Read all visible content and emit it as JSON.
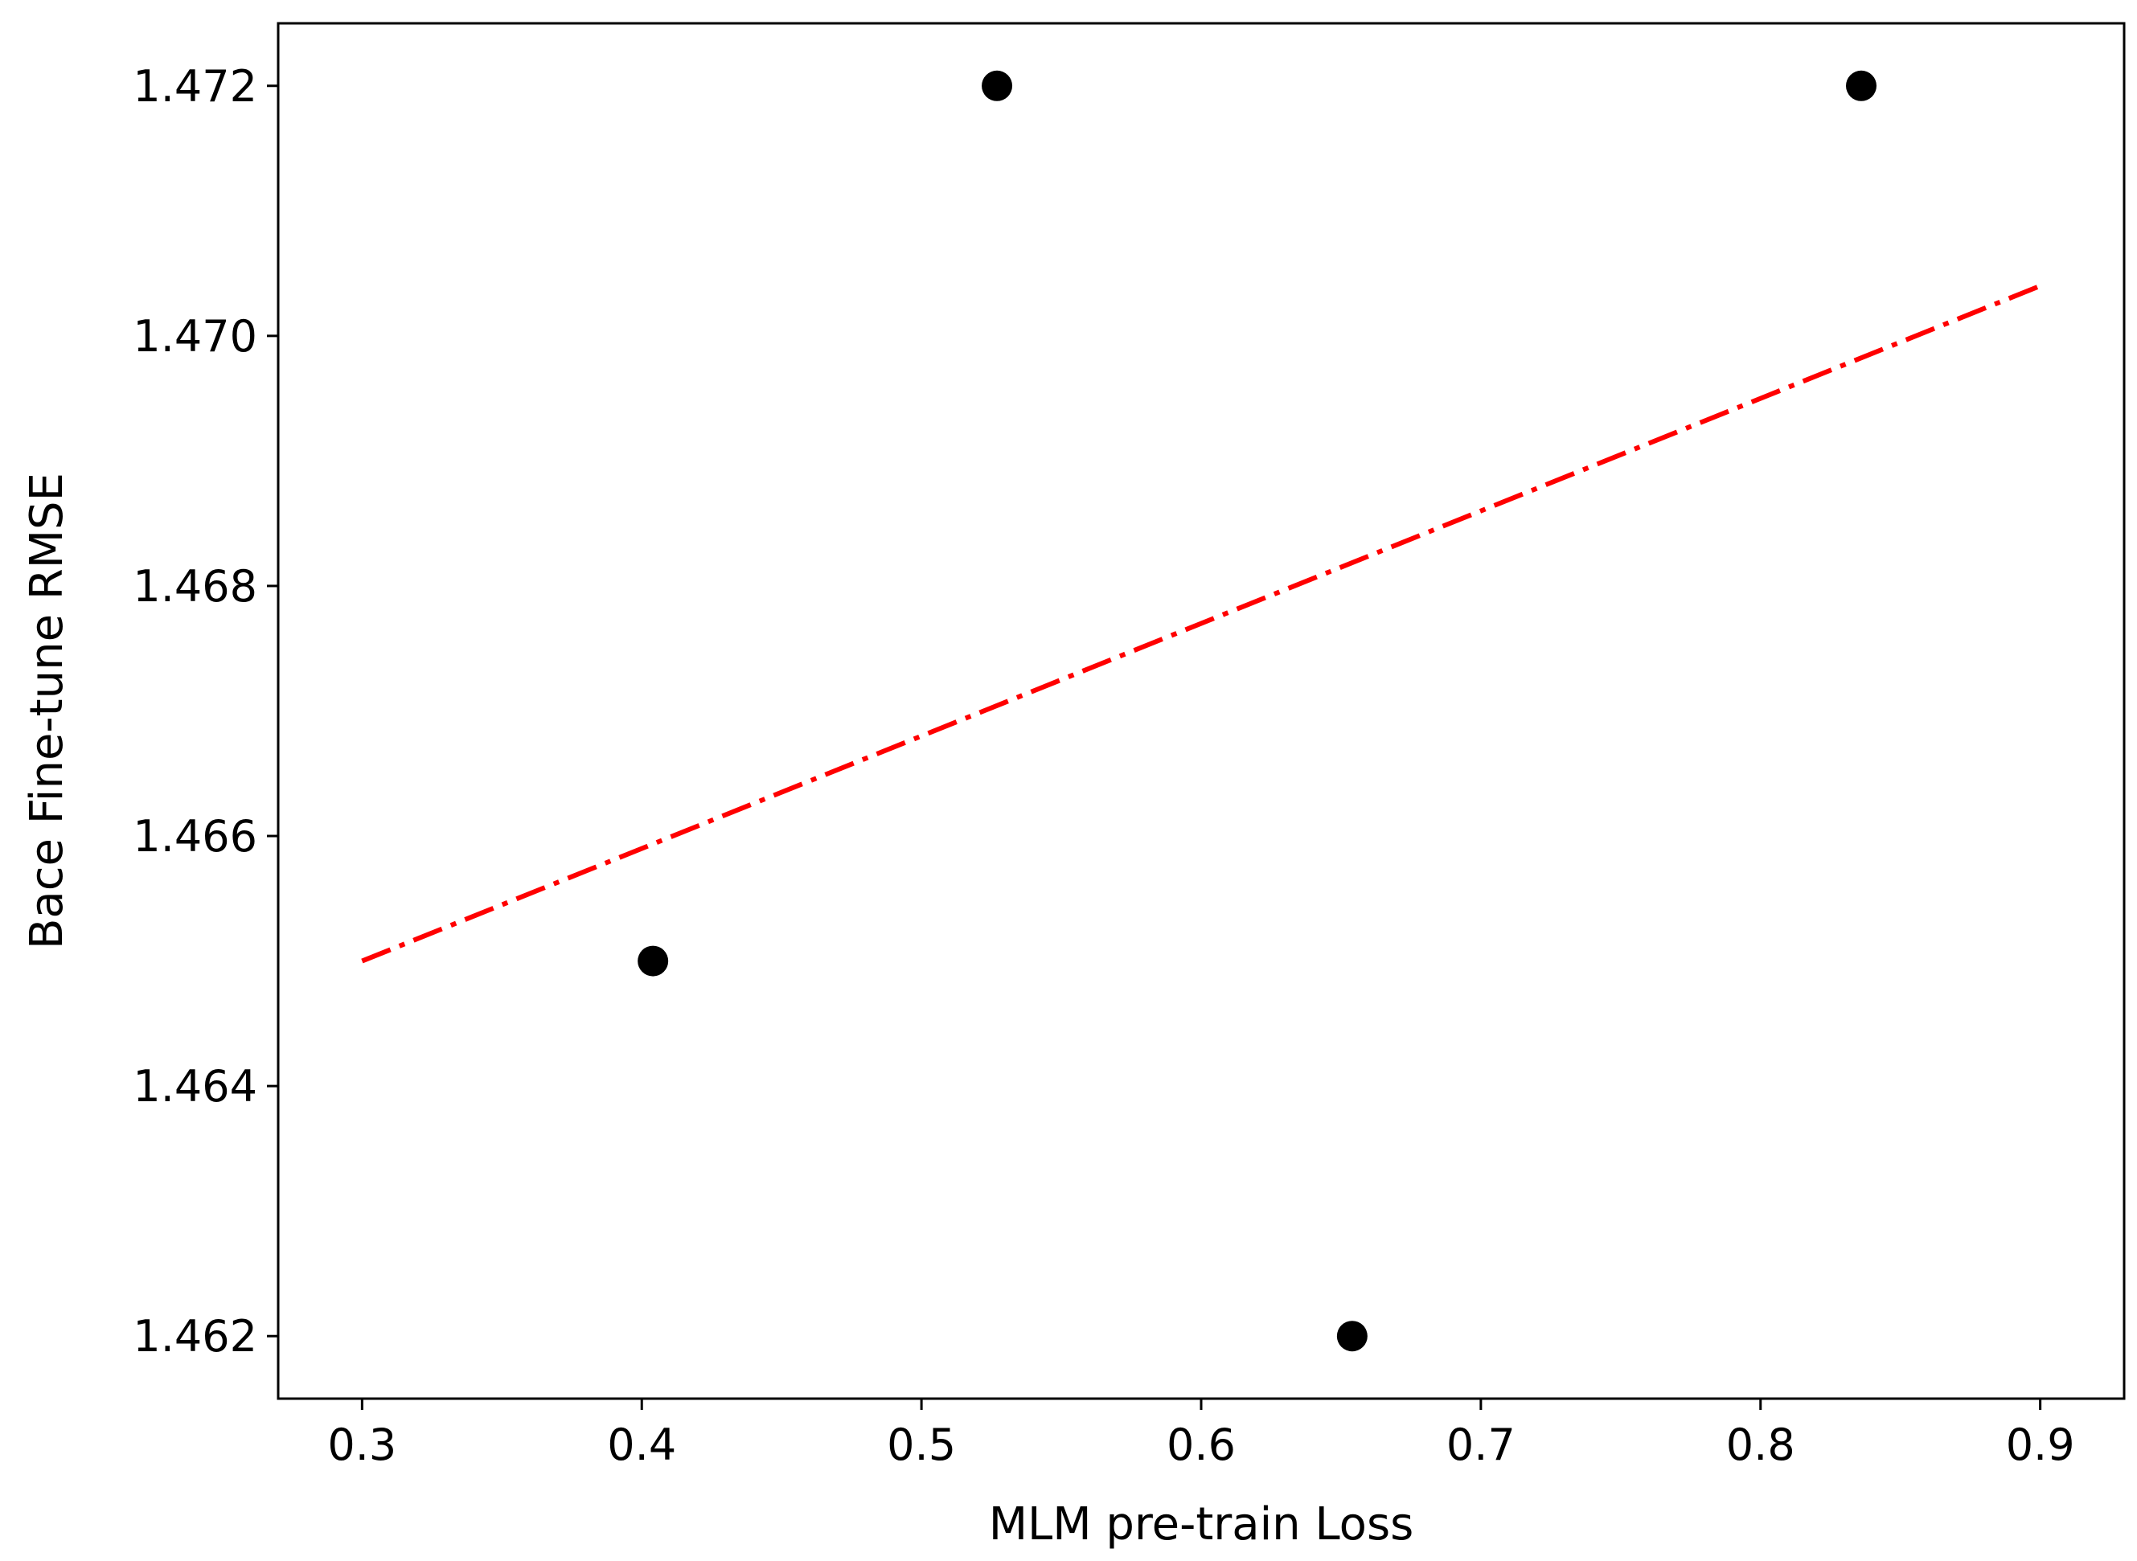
{
  "chart_data": {
    "type": "scatter",
    "xlabel": "MLM pre-train Loss",
    "ylabel": "Bace Fine-tune RMSE",
    "xlim": [
      0.27,
      0.93
    ],
    "ylim": [
      1.4615,
      1.4725
    ],
    "xticks": [
      0.3,
      0.4,
      0.5,
      0.6,
      0.7,
      0.8,
      0.9
    ],
    "xtick_labels": [
      "0.3",
      "0.4",
      "0.5",
      "0.6",
      "0.7",
      "0.8",
      "0.9"
    ],
    "yticks": [
      1.462,
      1.464,
      1.466,
      1.468,
      1.47,
      1.472
    ],
    "ytick_labels": [
      "1.462",
      "1.464",
      "1.466",
      "1.468",
      "1.470",
      "1.472"
    ],
    "points": {
      "x": [
        0.404,
        0.527,
        0.654,
        0.836
      ],
      "y": [
        1.465,
        1.472,
        1.462,
        1.472
      ],
      "color": "#000000"
    },
    "fit_line": {
      "x": [
        0.3,
        0.9
      ],
      "y": [
        1.465,
        1.4704
      ],
      "color": "#ff0000",
      "style": "dashdot"
    },
    "grid": false,
    "legend": "none"
  }
}
